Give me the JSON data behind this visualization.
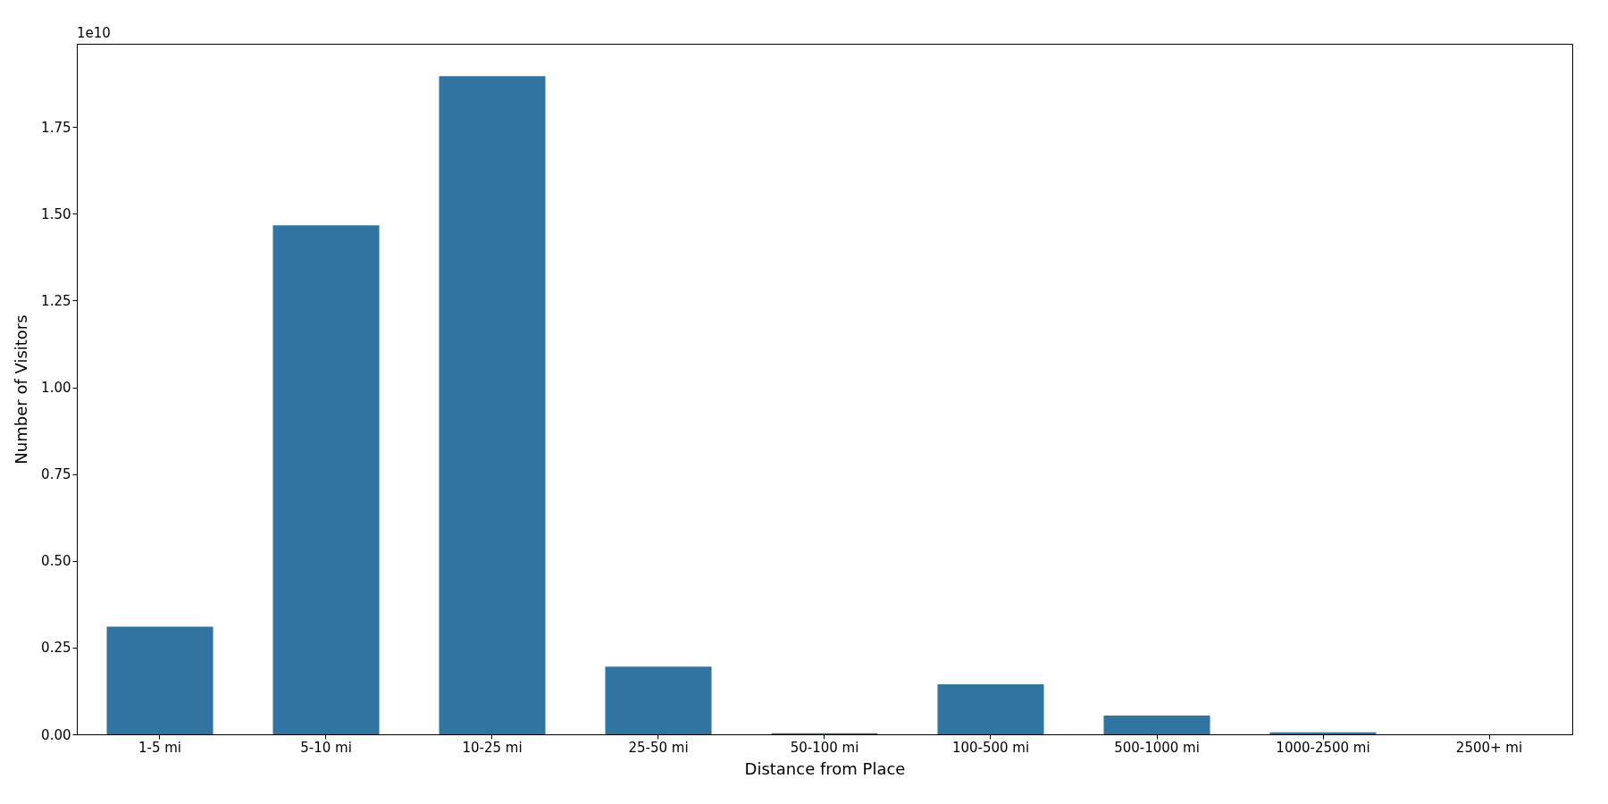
{
  "chart_data": {
    "type": "bar",
    "xlabel": "Distance from Place",
    "ylabel": "Number of Visitors",
    "categories": [
      "1-5 mi",
      "5-10 mi",
      "10-25 mi",
      "25-50 mi",
      "50-100 mi",
      "100-500 mi",
      "500-1000 mi",
      "1000-2500 mi",
      "2500+ mi"
    ],
    "values": [
      0.31,
      1.467,
      1.897,
      0.195,
      0.003,
      0.144,
      0.054,
      0.006,
      null
    ],
    "color": "#3274a1",
    "ylim": [
      0,
      1.99
    ],
    "yticks": [
      {
        "value": 0,
        "label": "0.00"
      },
      {
        "value": 0.25,
        "label": "0.25"
      },
      {
        "value": 0.5,
        "label": "0.50"
      },
      {
        "value": 0.75,
        "label": "0.75"
      },
      {
        "value": 1.0,
        "label": "1.00"
      },
      {
        "value": 1.25,
        "label": "1.25"
      },
      {
        "value": 1.5,
        "label": "1.50"
      },
      {
        "value": 1.75,
        "label": "1.75"
      }
    ],
    "annotations": [
      "1e10"
    ],
    "grid": false
  }
}
